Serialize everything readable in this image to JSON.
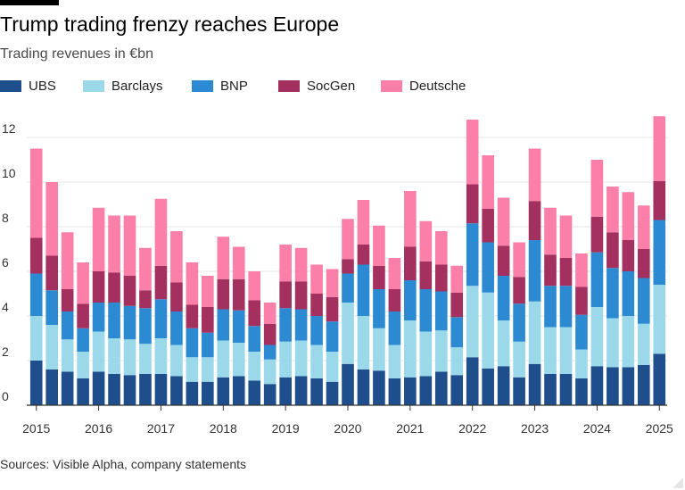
{
  "header": {
    "title": "Trump trading frenzy reaches Europe",
    "subtitle": "Trading revenues in €bn"
  },
  "footer": {
    "source": "Sources: Visible Alpha, company statements"
  },
  "chart_data": {
    "type": "bar",
    "stacked": true,
    "title": "Trump trading frenzy reaches Europe",
    "subtitle": "Trading revenues in €bn",
    "xlabel": "",
    "ylabel": "",
    "ylim": [
      0,
      13
    ],
    "yticks": [
      0,
      2,
      4,
      6,
      8,
      10,
      12
    ],
    "grid": true,
    "legend_position": "top",
    "x_tick_labels": [
      "2015",
      "2016",
      "2017",
      "2018",
      "2019",
      "2020",
      "2021",
      "2022",
      "2023",
      "2024",
      "2025"
    ],
    "x_tick_label_every": 4,
    "categories": [
      "2015 Q1",
      "2015 Q2",
      "2015 Q3",
      "2015 Q4",
      "2016 Q1",
      "2016 Q2",
      "2016 Q3",
      "2016 Q4",
      "2017 Q1",
      "2017 Q2",
      "2017 Q3",
      "2017 Q4",
      "2018 Q1",
      "2018 Q2",
      "2018 Q3",
      "2018 Q4",
      "2019 Q1",
      "2019 Q2",
      "2019 Q3",
      "2019 Q4",
      "2020 Q1",
      "2020 Q2",
      "2020 Q3",
      "2020 Q4",
      "2021 Q1",
      "2021 Q2",
      "2021 Q3",
      "2021 Q4",
      "2022 Q1",
      "2022 Q2",
      "2022 Q3",
      "2022 Q4",
      "2023 Q1",
      "2023 Q2",
      "2023 Q3",
      "2023 Q4",
      "2024 Q1",
      "2024 Q2",
      "2024 Q3",
      "2024 Q4",
      "2025 Q1"
    ],
    "series": [
      {
        "name": "UBS",
        "color": "#1f4e8c",
        "values": [
          2.0,
          1.6,
          1.5,
          1.2,
          1.5,
          1.4,
          1.35,
          1.4,
          1.4,
          1.3,
          1.05,
          1.05,
          1.25,
          1.3,
          1.1,
          0.95,
          1.25,
          1.3,
          1.2,
          1.05,
          1.85,
          1.6,
          1.55,
          1.2,
          1.25,
          1.3,
          1.5,
          1.35,
          2.15,
          1.65,
          1.75,
          1.25,
          1.85,
          1.4,
          1.4,
          1.2,
          1.75,
          1.7,
          1.7,
          1.8,
          2.3
        ]
      },
      {
        "name": "Barclays",
        "color": "#9ad8ea",
        "values": [
          2.0,
          2.0,
          1.45,
          1.2,
          1.8,
          1.6,
          1.6,
          1.35,
          1.6,
          1.4,
          1.1,
          1.1,
          1.65,
          1.5,
          1.3,
          1.1,
          1.6,
          1.6,
          1.5,
          1.35,
          2.75,
          2.4,
          1.9,
          1.5,
          2.55,
          2.0,
          1.85,
          1.25,
          3.2,
          3.4,
          2.05,
          1.6,
          2.8,
          2.1,
          2.1,
          1.3,
          2.65,
          2.2,
          2.3,
          1.85,
          3.1
        ]
      },
      {
        "name": "BNP",
        "color": "#2b8ad1",
        "values": [
          1.9,
          1.55,
          1.25,
          1.05,
          1.3,
          1.6,
          1.5,
          1.6,
          1.75,
          1.5,
          1.3,
          1.1,
          1.4,
          1.45,
          1.15,
          0.65,
          1.5,
          1.4,
          1.3,
          1.35,
          1.3,
          2.3,
          1.75,
          1.5,
          1.8,
          1.9,
          1.75,
          1.35,
          2.8,
          2.25,
          2.0,
          1.7,
          2.75,
          1.85,
          1.85,
          1.55,
          2.45,
          2.25,
          2.0,
          2.05,
          2.9
        ]
      },
      {
        "name": "SocGen",
        "color": "#a3305f",
        "values": [
          1.6,
          1.55,
          1.0,
          1.1,
          1.4,
          1.35,
          1.35,
          0.8,
          1.5,
          1.3,
          1.05,
          1.15,
          1.35,
          1.4,
          1.15,
          0.95,
          1.2,
          1.25,
          1.0,
          1.1,
          0.65,
          0.9,
          1.05,
          1.0,
          1.5,
          1.25,
          1.2,
          1.1,
          1.75,
          1.5,
          1.35,
          1.2,
          1.75,
          1.4,
          1.25,
          1.25,
          1.6,
          1.6,
          1.4,
          1.3,
          1.75
        ]
      },
      {
        "name": "Deutsche",
        "color": "#fb7fa8",
        "values": [
          4.0,
          3.3,
          2.55,
          1.85,
          2.85,
          2.55,
          2.7,
          1.9,
          3.0,
          2.3,
          1.9,
          1.4,
          1.9,
          1.45,
          1.3,
          0.95,
          1.65,
          1.5,
          1.3,
          1.25,
          1.8,
          2.0,
          1.8,
          1.4,
          2.5,
          1.8,
          1.5,
          1.2,
          2.9,
          2.4,
          2.15,
          1.55,
          2.35,
          2.1,
          1.9,
          1.5,
          2.55,
          2.05,
          2.15,
          1.95,
          2.9
        ]
      }
    ]
  }
}
